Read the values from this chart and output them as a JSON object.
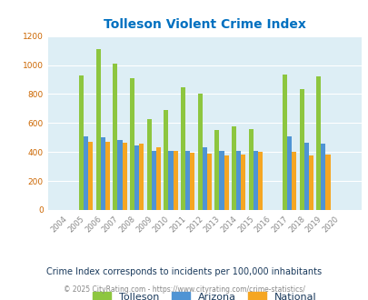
{
  "title": "Tolleson Violent Crime Index",
  "years": [
    "2004",
    "2005",
    "2006",
    "2007",
    "2008",
    "2009",
    "2010",
    "2011",
    "2012",
    "2013",
    "2014",
    "2015",
    "2016",
    "2017",
    "2018",
    "2019",
    "2020"
  ],
  "tolleson": [
    0,
    930,
    1110,
    1010,
    910,
    625,
    690,
    845,
    805,
    550,
    575,
    555,
    0,
    935,
    835,
    920,
    0
  ],
  "arizona": [
    0,
    510,
    500,
    485,
    445,
    410,
    410,
    410,
    435,
    410,
    405,
    410,
    0,
    510,
    465,
    455,
    0
  ],
  "national": [
    0,
    470,
    470,
    465,
    455,
    430,
    405,
    395,
    390,
    375,
    385,
    400,
    0,
    400,
    375,
    380,
    0
  ],
  "tolleson_color": "#8dc63f",
  "arizona_color": "#4f94d4",
  "national_color": "#f5a623",
  "bg_color": "#ddeef5",
  "title_color": "#0070c0",
  "subtitle": "Crime Index corresponds to incidents per 100,000 inhabitants",
  "footer": "© 2025 CityRating.com - https://www.cityrating.com/crime-statistics/",
  "subtitle_color": "#1a3a5c",
  "footer_color": "#888888",
  "ylim": [
    0,
    1200
  ],
  "yticks": [
    0,
    200,
    400,
    600,
    800,
    1000,
    1200
  ]
}
